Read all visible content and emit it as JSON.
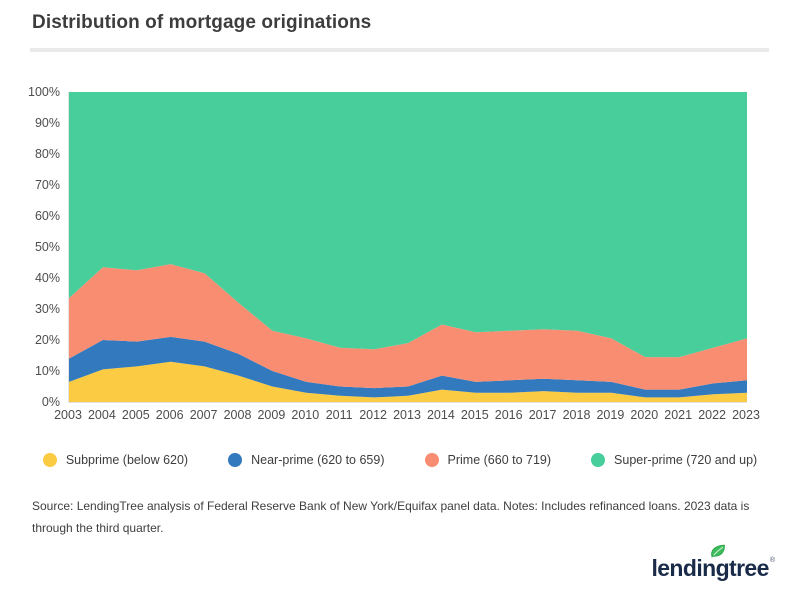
{
  "title": "Distribution of mortgage originations",
  "source_note": "Source: LendingTree analysis of Federal Reserve Bank of New York/Equifax panel data. Notes: Includes refinanced loans. 2023 data is through the third quarter.",
  "logo": {
    "text": "lendingtree",
    "mark": "®"
  },
  "colors": {
    "subprime": "#fbcb43",
    "near_prime": "#3279be",
    "prime": "#f98d72",
    "super_prime": "#47ce9b"
  },
  "chart_data": {
    "type": "area",
    "stacked": true,
    "unit": "percent",
    "title": "Distribution of mortgage originations",
    "xlabel": "",
    "ylabel": "",
    "ylim": [
      0,
      100
    ],
    "grid": false,
    "legend_position": "bottom",
    "y_ticks": [
      "100%",
      "90%",
      "80%",
      "70%",
      "60%",
      "50%",
      "40%",
      "30%",
      "20%",
      "10%",
      "0%"
    ],
    "x": [
      2003,
      2004,
      2005,
      2006,
      2007,
      2008,
      2009,
      2010,
      2011,
      2012,
      2013,
      2014,
      2015,
      2016,
      2017,
      2018,
      2019,
      2020,
      2021,
      2022,
      2023
    ],
    "series": [
      {
        "name": "Subprime (below 620)",
        "color_key": "subprime",
        "values": [
          6.5,
          10.5,
          11.5,
          13,
          11.5,
          8.5,
          5,
          3,
          2,
          1.5,
          2,
          4,
          3,
          3,
          3.5,
          3,
          3,
          1.5,
          1.5,
          2.5,
          3
        ]
      },
      {
        "name": "Near-prime (620 to 659)",
        "color_key": "near_prime",
        "values": [
          7.5,
          9.5,
          8,
          8,
          8,
          7,
          5,
          3.5,
          3,
          3,
          3,
          4.5,
          3.5,
          4,
          4,
          4,
          3.5,
          2.5,
          2.5,
          3.5,
          4
        ]
      },
      {
        "name": "Prime (660 to 719)",
        "color_key": "prime",
        "values": [
          19.5,
          23.5,
          23,
          23.5,
          22,
          16.5,
          13,
          14,
          12.5,
          12.5,
          14,
          16.5,
          16,
          16,
          16,
          16,
          14,
          10.5,
          10.5,
          11.5,
          13.5
        ]
      },
      {
        "name": "Super-prime (720 and up)",
        "color_key": "super_prime",
        "values": [
          66.5,
          56.5,
          57.5,
          55.5,
          58.5,
          68,
          77,
          79.5,
          82.5,
          83,
          81,
          75,
          77.5,
          77,
          76.5,
          77,
          79.5,
          85.5,
          85.5,
          82.5,
          79.5
        ]
      }
    ]
  }
}
